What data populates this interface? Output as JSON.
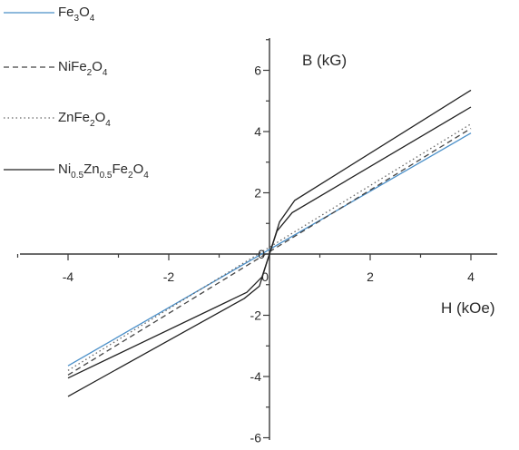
{
  "chart_data": {
    "type": "line",
    "xlabel": "H (kOe)",
    "ylabel": "B (kG)",
    "xlim": [
      -5,
      5
    ],
    "ylim": [
      -6.5,
      7
    ],
    "xticks": [
      -4,
      -2,
      0,
      2,
      4
    ],
    "yticks": [
      -6,
      -4,
      -2,
      0,
      2,
      4,
      6
    ],
    "legend_position": "top-left",
    "grid": false,
    "series": [
      {
        "name": "Fe3O4",
        "legend_text": [
          [
            "Fe",
            ""
          ],
          [
            "3",
            "sub"
          ],
          [
            "O",
            ""
          ],
          [
            "4",
            "sub"
          ]
        ],
        "color": "#4a8fc8",
        "dash": "solid",
        "branches": [
          {
            "x": [
              -4,
              4
            ],
            "y": [
              -3.65,
              3.95
            ]
          }
        ]
      },
      {
        "name": "NiFe2O4",
        "legend_text": [
          [
            "NiFe",
            ""
          ],
          [
            "2",
            "sub"
          ],
          [
            "O",
            ""
          ],
          [
            "4",
            "sub"
          ]
        ],
        "color": "#444444",
        "dash": "dashed",
        "branches": [
          {
            "x": [
              -4,
              4
            ],
            "y": [
              -3.95,
              4.1
            ]
          }
        ]
      },
      {
        "name": "ZnFe2O4",
        "legend_text": [
          [
            "ZnFe",
            ""
          ],
          [
            "2",
            "sub"
          ],
          [
            "O",
            ""
          ],
          [
            "4",
            "sub"
          ]
        ],
        "color": "#666666",
        "dash": "dotted",
        "branches": [
          {
            "x": [
              -4,
              4
            ],
            "y": [
              -3.8,
              4.25
            ]
          }
        ]
      },
      {
        "name": "Ni0.5Zn0.5Fe2O4",
        "legend_text": [
          [
            "Ni",
            ""
          ],
          [
            "0.5",
            "sub"
          ],
          [
            "Zn",
            ""
          ],
          [
            "0.5",
            "sub"
          ],
          [
            "Fe",
            ""
          ],
          [
            "2",
            "sub"
          ],
          [
            "O",
            ""
          ],
          [
            "4",
            "sub"
          ]
        ],
        "color": "#222222",
        "dash": "solid",
        "branches": [
          {
            "x": [
              -4,
              -0.45,
              -0.15,
              0,
              0.15,
              0.45,
              4
            ],
            "y": [
              -4.05,
              -1.25,
              -0.75,
              0,
              0.75,
              1.35,
              4.8
            ]
          },
          {
            "x": [
              -4,
              -0.5,
              -0.2,
              0,
              0.2,
              0.5,
              4
            ],
            "y": [
              -4.65,
              -1.45,
              -1.05,
              0,
              1.05,
              1.75,
              5.35
            ]
          }
        ]
      }
    ]
  }
}
